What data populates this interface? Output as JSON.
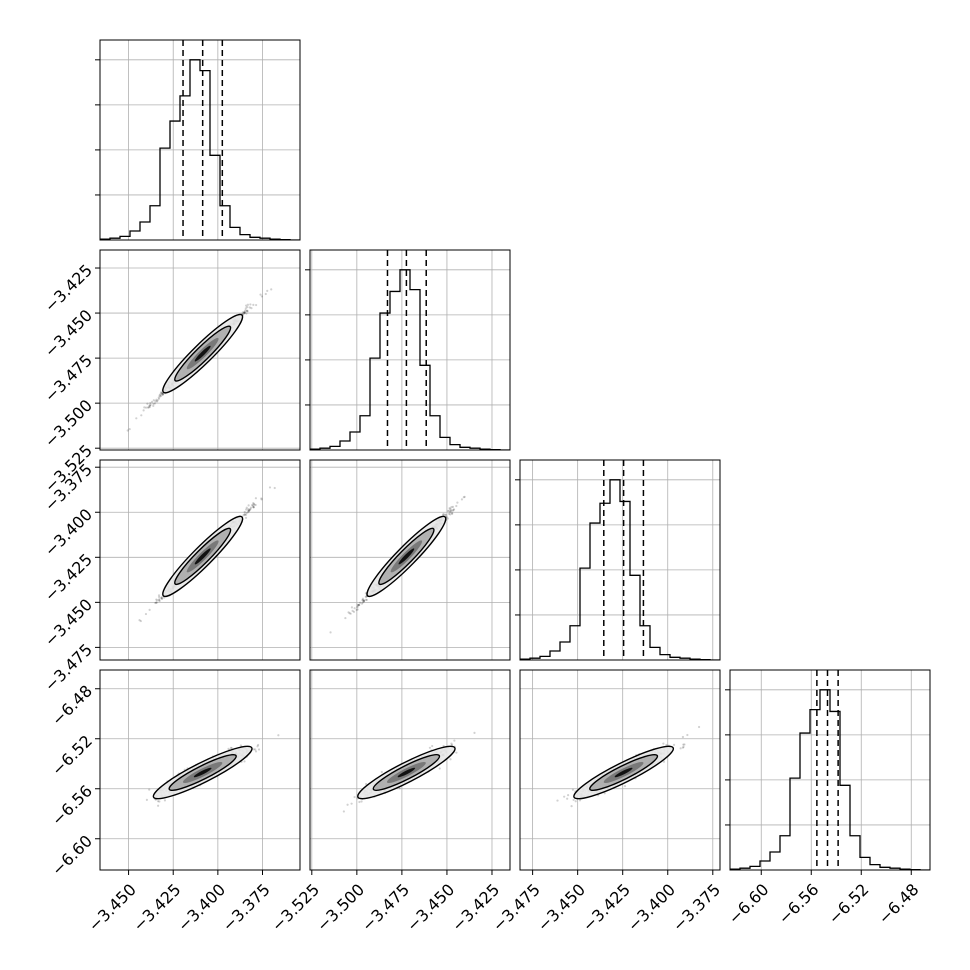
{
  "chart_data": {
    "type": "corner",
    "n_params": 4,
    "grid": true,
    "colors": {
      "line": "#000000",
      "grid": "#b0b0b0",
      "scatter": "#000000",
      "contour_fill": "#e8e8e8",
      "contour_mid": "#a8a8a8",
      "contour_inner": "#707070",
      "axes": "#000000"
    },
    "params": [
      {
        "name": "p0",
        "range": [
          -3.466,
          -3.354
        ],
        "median": -3.4085,
        "q16": -3.4195,
        "q84": -3.3975,
        "hist": [
          0.5,
          1,
          2,
          5,
          10,
          19,
          51,
          66,
          80,
          100,
          94,
          47,
          19,
          7,
          3,
          1.5,
          1,
          0.5,
          0.2,
          0
        ]
      },
      {
        "name": "p1",
        "range": [
          -3.526,
          -3.415
        ],
        "median": -3.4725,
        "q16": -3.483,
        "q84": -3.4615,
        "hist": [
          0.5,
          1,
          2,
          5,
          10,
          19,
          51,
          76,
          88,
          100,
          89,
          47,
          19,
          7,
          3,
          1.5,
          1,
          0.5,
          0.2,
          0
        ]
      },
      {
        "name": "p2",
        "range": [
          -3.482,
          -3.371
        ],
        "median": -3.4245,
        "q16": -3.4355,
        "q84": -3.4135,
        "hist": [
          0.5,
          1,
          2,
          5,
          10,
          19,
          51,
          76,
          87,
          100,
          88,
          47,
          19,
          7,
          3,
          1.5,
          1,
          0.5,
          0.2,
          0
        ]
      },
      {
        "name": "p3",
        "range": [
          -6.625,
          -6.465
        ],
        "median": -6.547,
        "q16": -6.5555,
        "q84": -6.5385,
        "hist": [
          0.5,
          1,
          2,
          5,
          10,
          19,
          51,
          76,
          89,
          100,
          88,
          47,
          19,
          7,
          3,
          1.5,
          1,
          0.5,
          0.2,
          0
        ]
      }
    ],
    "x_ticks": [
      [
        "-3.450",
        "-3.425",
        "-3.400",
        "-3.375"
      ],
      [
        "-3.525",
        "-3.500",
        "-3.475",
        "-3.450",
        "-3.425"
      ],
      [
        "-3.475",
        "-3.450",
        "-3.425",
        "-3.400",
        "-3.375"
      ],
      [
        "-6.60",
        "-6.56",
        "-6.52",
        "-6.48"
      ]
    ],
    "y_ticks": [
      [],
      [
        "-3.425",
        "-3.450",
        "-3.475",
        "-3.500",
        "-3.525"
      ],
      [
        "-3.375",
        "-3.400",
        "-3.425",
        "-3.450",
        "-3.475"
      ],
      [
        "-6.48",
        "-6.52",
        "-6.56",
        "-6.60"
      ]
    ]
  }
}
